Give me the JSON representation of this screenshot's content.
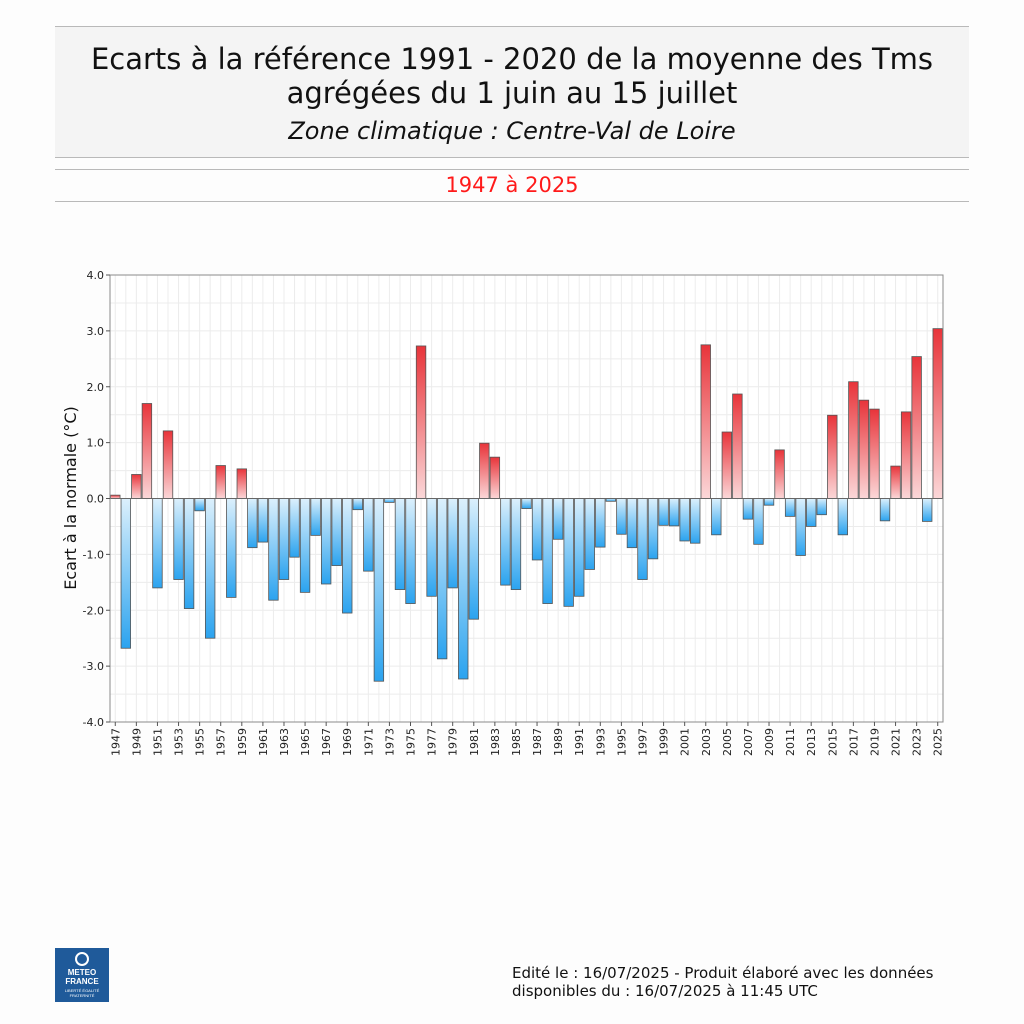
{
  "header": {
    "title_line1": "Ecarts à la référence 1991 - 2020 de la moyenne des Tms",
    "title_line2": "agrégées du 1 juin au 15 juillet",
    "subtitle": "Zone climatique : Centre-Val de Loire",
    "period": "1947 à 2025"
  },
  "colors": {
    "positive_dark": "#e8343a",
    "positive_light": "#fbd7d8",
    "negative_dark": "#2ba3ef",
    "negative_light": "#dcf0fc",
    "period_text": "#ff1a1a"
  },
  "chart_data": {
    "type": "bar",
    "ylabel": "Ecart à la normale (°C)",
    "xlabel": "",
    "ylim": [
      -4.0,
      4.0
    ],
    "yticks": [
      "-4.0",
      "-3.0",
      "-2.0",
      "-1.0",
      "0.0",
      "1.0",
      "2.0",
      "3.0",
      "4.0"
    ],
    "grid": true,
    "categories": [
      "1947",
      "1948",
      "1949",
      "1950",
      "1951",
      "1952",
      "1953",
      "1954",
      "1955",
      "1956",
      "1957",
      "1958",
      "1959",
      "1960",
      "1961",
      "1962",
      "1963",
      "1964",
      "1965",
      "1966",
      "1967",
      "1968",
      "1969",
      "1970",
      "1971",
      "1972",
      "1973",
      "1974",
      "1975",
      "1976",
      "1977",
      "1978",
      "1979",
      "1980",
      "1981",
      "1982",
      "1983",
      "1984",
      "1985",
      "1986",
      "1987",
      "1988",
      "1989",
      "1990",
      "1991",
      "1992",
      "1993",
      "1994",
      "1995",
      "1996",
      "1997",
      "1998",
      "1999",
      "2000",
      "2001",
      "2002",
      "2003",
      "2004",
      "2005",
      "2006",
      "2007",
      "2008",
      "2009",
      "2010",
      "2011",
      "2012",
      "2013",
      "2014",
      "2015",
      "2016",
      "2017",
      "2018",
      "2019",
      "2020",
      "2021",
      "2022",
      "2023",
      "2024",
      "2025"
    ],
    "values": [
      0.06,
      -2.68,
      0.43,
      1.7,
      -1.6,
      1.21,
      -1.45,
      -1.97,
      -0.22,
      -2.5,
      0.59,
      -1.77,
      0.53,
      -0.88,
      -0.78,
      -1.82,
      -1.45,
      -1.05,
      -1.68,
      -0.66,
      -1.53,
      -1.2,
      -2.05,
      -0.2,
      -1.3,
      -3.27,
      -0.07,
      -1.63,
      -1.88,
      2.73,
      -1.75,
      -2.87,
      -1.6,
      -3.23,
      -2.16,
      0.99,
      0.74,
      -1.55,
      -1.63,
      -0.18,
      -1.1,
      -1.88,
      -0.73,
      -1.93,
      -1.75,
      -1.27,
      -0.87,
      -0.05,
      -0.64,
      -0.88,
      -1.45,
      -1.08,
      -0.48,
      -0.49,
      -0.76,
      -0.8,
      2.75,
      -0.65,
      1.19,
      1.87,
      -0.37,
      -0.82,
      -0.12,
      0.87,
      -0.32,
      -1.02,
      -0.5,
      -0.29,
      1.49,
      -0.65,
      2.09,
      1.76,
      1.6,
      -0.4,
      0.58,
      1.55,
      2.54,
      -0.41,
      3.04
    ],
    "xtick_labels": [
      "1947",
      "1949",
      "1951",
      "1953",
      "1955",
      "1957",
      "1959",
      "1961",
      "1963",
      "1965",
      "1967",
      "1969",
      "1971",
      "1973",
      "1975",
      "1977",
      "1979",
      "1981",
      "1983",
      "1985",
      "1987",
      "1989",
      "1991",
      "1993",
      "1995",
      "1997",
      "1999",
      "2001",
      "2003",
      "2005",
      "2007",
      "2009",
      "2011",
      "2013",
      "2015",
      "2017",
      "2019",
      "2021",
      "2023",
      "2025"
    ]
  },
  "footer": {
    "logo_line1": "METEO",
    "logo_line2": "FRANCE",
    "logo_line3": "LIBERTÉ ÉGALITÉ FRATERNITÉ",
    "edit_line1": "Edité le : 16/07/2025 - Produit élaboré avec les données",
    "edit_line2": "disponibles du : 16/07/2025 à 11:45 UTC"
  }
}
